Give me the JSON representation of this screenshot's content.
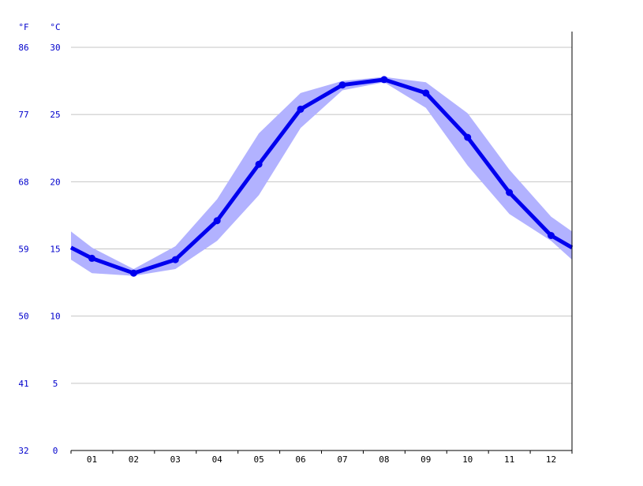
{
  "chart_data": {
    "type": "line",
    "title": "",
    "xlabel": "",
    "ylabel": "",
    "categories": [
      "01",
      "02",
      "03",
      "04",
      "05",
      "06",
      "07",
      "08",
      "09",
      "10",
      "11",
      "12"
    ],
    "x_axis_boundary_months": [
      0.5,
      12.5
    ],
    "ylim": [
      0,
      30
    ],
    "y_axis_fahrenheit_label": "°F",
    "y_axis_celsius_label": "°C",
    "y_ticks": [
      {
        "c": "0",
        "f": "32",
        "value": 0
      },
      {
        "c": "5",
        "f": "41",
        "value": 5
      },
      {
        "c": "10",
        "f": "50",
        "value": 10
      },
      {
        "c": "15",
        "f": "59",
        "value": 15
      },
      {
        "c": "20",
        "f": "68",
        "value": 20
      },
      {
        "c": "25",
        "f": "77",
        "value": 25
      },
      {
        "c": "30",
        "f": "86",
        "value": 30
      }
    ],
    "series": [
      {
        "values": [
          14.3,
          13.2,
          14.2,
          17.1,
          21.3,
          25.4,
          27.2,
          27.6,
          26.6,
          23.3,
          19.2,
          16.0
        ],
        "boundary_values": [
          15.1,
          15.1
        ],
        "band_upper": [
          15.1,
          13.5,
          15.2,
          18.7,
          23.6,
          26.6,
          27.5,
          27.8,
          27.4,
          25.1,
          20.9,
          17.4
        ],
        "band_lower": [
          13.2,
          13.0,
          13.5,
          15.6,
          19.0,
          24.0,
          26.8,
          27.4,
          25.5,
          21.2,
          17.6,
          15.6
        ],
        "band_boundary_upper": [
          16.3,
          16.3
        ],
        "band_boundary_lower": [
          14.2,
          14.2
        ]
      }
    ],
    "grid": true,
    "colors": {
      "line": "#0000ee",
      "band": "#b2b2ff",
      "grid": "#c4c4c4",
      "axis": "#000000",
      "y_labels": "#0000cc"
    }
  }
}
